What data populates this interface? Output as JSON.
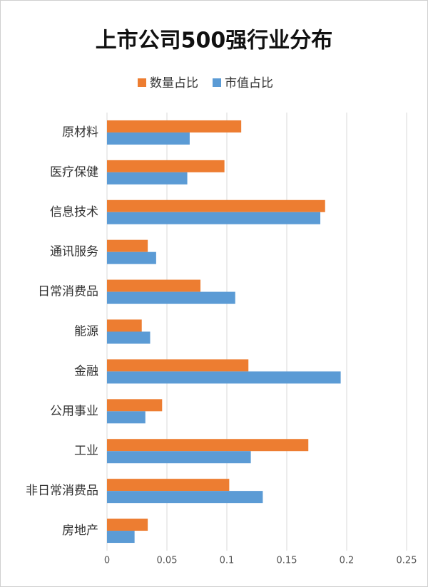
{
  "chart_data": {
    "type": "hbar",
    "title": "上市公司500强行业分布",
    "categories": [
      "原材料",
      "医疗保健",
      "信息技术",
      "通讯服务",
      "日常消费品",
      "能源",
      "金融",
      "公用事业",
      "工业",
      "非日常消费品",
      "房地产"
    ],
    "series": [
      {
        "name": "数量占比",
        "color": "#ed7d31",
        "values": [
          0.112,
          0.098,
          0.182,
          0.034,
          0.078,
          0.029,
          0.118,
          0.046,
          0.168,
          0.102,
          0.034
        ]
      },
      {
        "name": "市值占比",
        "color": "#5b9bd5",
        "values": [
          0.069,
          0.067,
          0.178,
          0.041,
          0.107,
          0.036,
          0.195,
          0.032,
          0.12,
          0.13,
          0.023
        ]
      }
    ],
    "xlim": [
      0,
      0.25
    ],
    "xticks": [
      0,
      0.05,
      0.1,
      0.15,
      0.2,
      0.25
    ],
    "grid": true,
    "legend": "top"
  }
}
